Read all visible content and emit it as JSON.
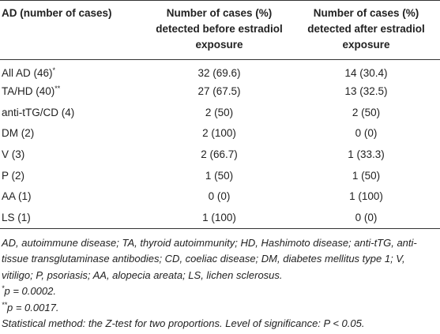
{
  "table": {
    "header": [
      "AD (number of cases)",
      "Number of cases (%) detected before estradiol exposure",
      "Number of cases (%) detected after estradiol exposure"
    ],
    "rows": [
      [
        {
          "text": "All AD (46)",
          "sup": "*"
        },
        "32 (69.6)",
        "14 (30.4)"
      ],
      [
        {
          "text": "TA/HD (40)",
          "sup": "**"
        },
        "27 (67.5)",
        "13 (32.5)"
      ],
      [
        {
          "text": "anti-tTG/CD (4)"
        },
        "2 (50)",
        "2 (50)"
      ],
      [
        {
          "text": "DM (2)"
        },
        "2 (100)",
        "0 (0)"
      ],
      [
        {
          "text": "V (3)"
        },
        "2 (66.7)",
        "1 (33.3)"
      ],
      [
        {
          "text": "P (2)"
        },
        "1 (50)",
        "1 (50)"
      ],
      [
        {
          "text": "AA (1)"
        },
        "0 (0)",
        "1 (100)"
      ],
      [
        {
          "text": "LS (1)"
        },
        "1 (100)",
        "0 (0)"
      ]
    ]
  },
  "footnotes": [
    {
      "text": "AD, autoimmune disease; TA, thyroid autoimmunity; HD, Hashimoto disease; anti-tTG, anti-tissue transglutaminase antibodies; CD, coeliac disease; DM, diabetes mellitus type 1; V, vitiligo; P, psoriasis; AA, alopecia areata; LS, lichen sclerosus."
    },
    {
      "mark": "*",
      "text": "p = 0.0002."
    },
    {
      "mark": "**",
      "text": "p = 0.0017."
    },
    {
      "text": "Statistical method: the Z-test for two proportions. Level of significance: P < 0.05."
    }
  ]
}
